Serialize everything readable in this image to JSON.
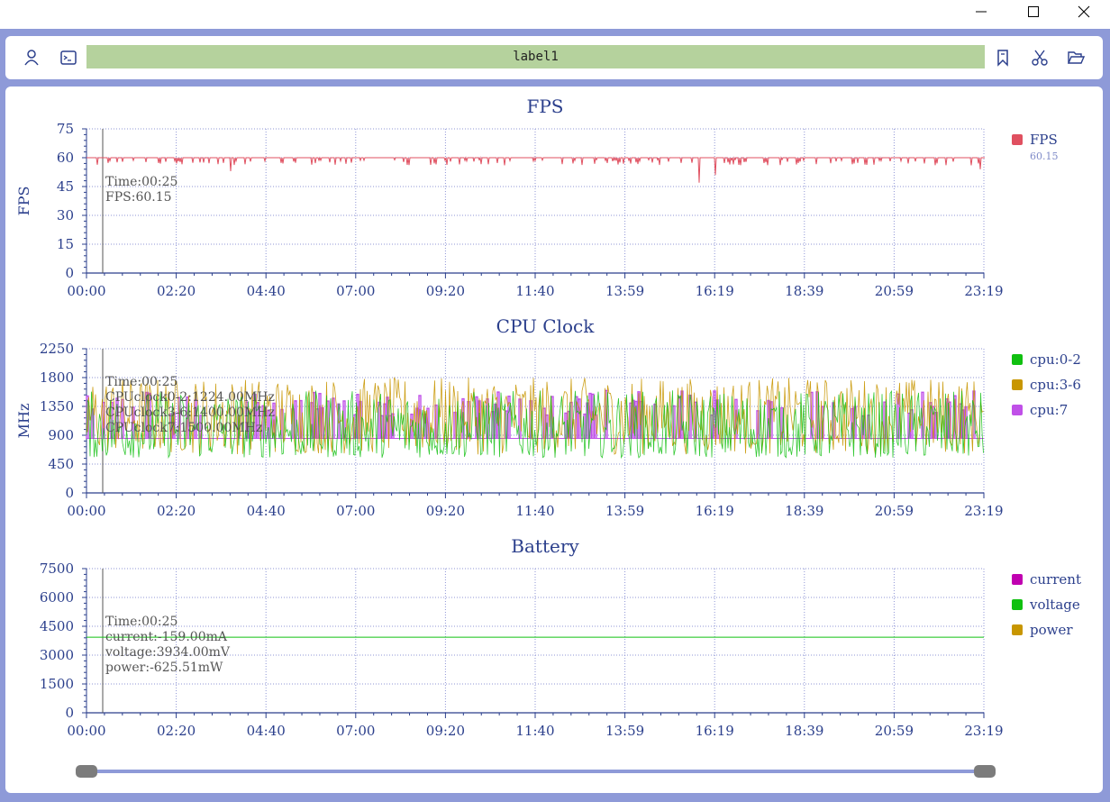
{
  "window": {
    "minimize_icon": "minimize-icon",
    "maximize_icon": "maximize-icon",
    "close_icon": "close-icon"
  },
  "toolbar": {
    "label": "label1",
    "left_icons": [
      "person-icon",
      "terminal-icon"
    ],
    "right_icons": [
      "bookmark-icon",
      "scissors-icon",
      "folder-open-icon"
    ]
  },
  "colors": {
    "frame": "#8e9ad8",
    "label_bg": "#b5d29d",
    "axis_text": "#2b3f8c",
    "grid": "#8f96d6"
  },
  "x_tick_labels": [
    "00:00",
    "02:20",
    "04:40",
    "07:00",
    "09:20",
    "11:40",
    "13:59",
    "16:19",
    "18:39",
    "20:59",
    "23:19"
  ],
  "cursor_time": "00:25",
  "charts": [
    {
      "title": "FPS",
      "ylabel": "FPS",
      "ylim": [
        0,
        75
      ],
      "yticks": [
        "75",
        "60",
        "45",
        "30",
        "15",
        "0"
      ],
      "legend": [
        {
          "name": "FPS",
          "color": "#e05060",
          "value": "60.15"
        }
      ],
      "tooltip": [
        "Time:00:25",
        "FPS:60.15"
      ]
    },
    {
      "title": "CPU Clock",
      "ylabel": "MHz",
      "ylim": [
        0,
        2250
      ],
      "yticks": [
        "2250",
        "1800",
        "1350",
        "900",
        "450",
        "0"
      ],
      "legend": [
        {
          "name": "cpu:0-2",
          "color": "#10c010"
        },
        {
          "name": "cpu:3-6",
          "color": "#c89600"
        },
        {
          "name": "cpu:7",
          "color": "#c050e8"
        }
      ],
      "tooltip": [
        "Time:00:25",
        "CPUclock0-2:1224.00MHz",
        "CPUclock3-6:1400.00MHz",
        "CPUclock7:1500.00MHz"
      ]
    },
    {
      "title": "Battery",
      "ylabel": "",
      "ylim": [
        0,
        7500
      ],
      "yticks": [
        "7500",
        "6000",
        "4500",
        "3000",
        "1500",
        "0"
      ],
      "legend": [
        {
          "name": "current",
          "color": "#c000b0"
        },
        {
          "name": "voltage",
          "color": "#10c010"
        },
        {
          "name": "power",
          "color": "#c89600"
        }
      ],
      "tooltip": [
        "Time:00:25",
        "current:-159.00mA",
        "voltage:3934.00mV",
        "power:-625.51mW"
      ]
    }
  ],
  "chart_data": [
    {
      "type": "line",
      "title": "FPS",
      "xlabel": "",
      "ylabel": "FPS",
      "ylim": [
        0,
        75
      ],
      "x_range": [
        "00:00",
        "23:19"
      ],
      "series": [
        {
          "name": "FPS",
          "typical": 60,
          "dips": [
            {
              "x": "03:45",
              "y": 53
            },
            {
              "x": "15:55",
              "y": 47
            },
            {
              "x": "16:22",
              "y": 51
            },
            {
              "x": "23:15",
              "y": 54
            }
          ]
        }
      ]
    },
    {
      "type": "line",
      "title": "CPU Clock",
      "xlabel": "",
      "ylabel": "MHz",
      "ylim": [
        0,
        2250
      ],
      "x_range": [
        "00:00",
        "23:19"
      ],
      "series": [
        {
          "name": "cpu:0-2",
          "range": [
            550,
            1600
          ]
        },
        {
          "name": "cpu:3-6",
          "range": [
            600,
            1800
          ]
        },
        {
          "name": "cpu:7",
          "range": [
            850,
            1600
          ],
          "baseline": 850
        }
      ]
    },
    {
      "type": "line",
      "title": "Battery",
      "xlabel": "",
      "ylabel": "",
      "ylim": [
        0,
        7500
      ],
      "x_range": [
        "00:00",
        "23:19"
      ],
      "series": [
        {
          "name": "current",
          "value": -159
        },
        {
          "name": "voltage",
          "value": 3934
        },
        {
          "name": "power",
          "value": -625.51
        }
      ]
    }
  ],
  "slider": {
    "start": 0,
    "end": 1
  }
}
